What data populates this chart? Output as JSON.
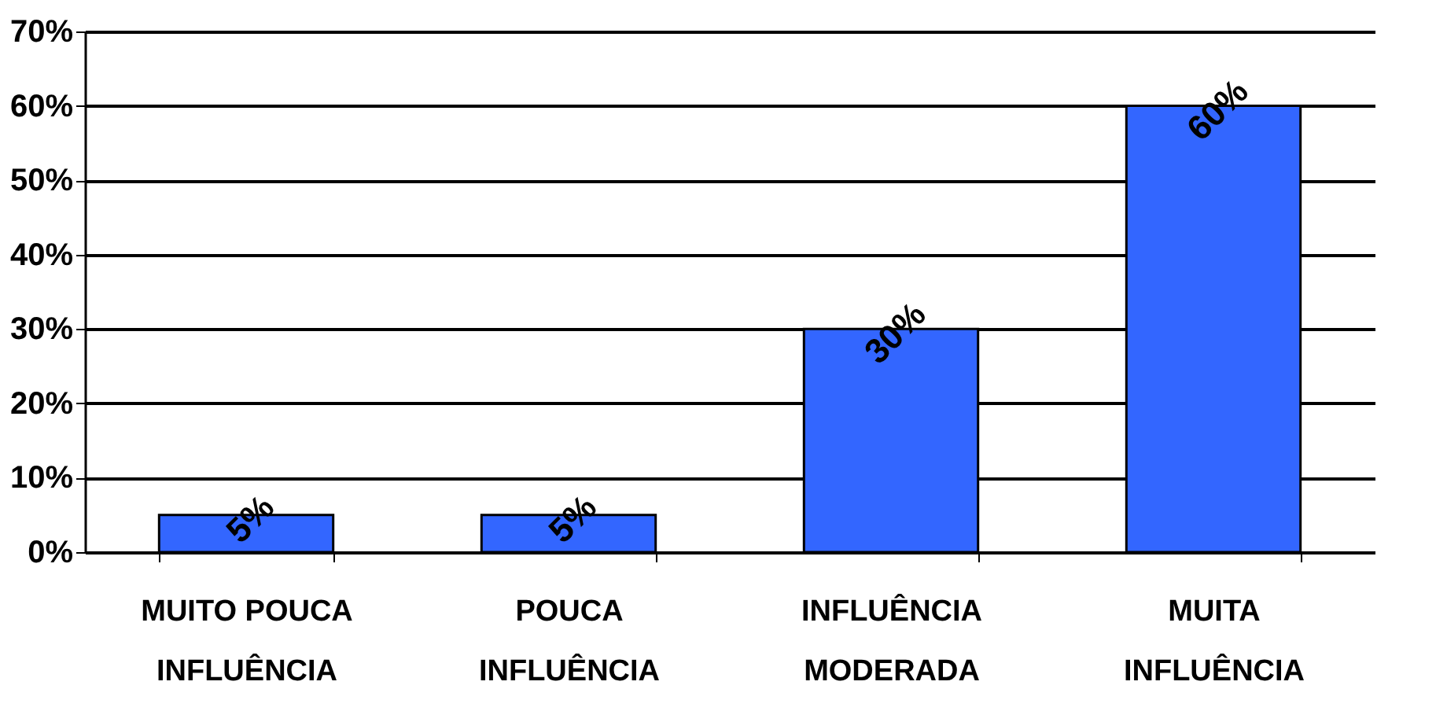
{
  "chart_data": {
    "type": "bar",
    "categories": [
      "MUITO POUCA INFLUÊNCIA",
      "POUCA INFLUÊNCIA",
      "INFLUÊNCIA MODERADA",
      "MUITA INFLUÊNCIA"
    ],
    "values": [
      5,
      5,
      30,
      60
    ],
    "value_labels": [
      "5%",
      "5%",
      "30%",
      "60%"
    ],
    "color": "#3366ff",
    "ylim": [
      0,
      70
    ],
    "yticks": [
      {
        "value": 0,
        "label": "0%"
      },
      {
        "value": 10,
        "label": "10%"
      },
      {
        "value": 20,
        "label": "20%"
      },
      {
        "value": 30,
        "label": "30%"
      },
      {
        "value": 40,
        "label": "40%"
      },
      {
        "value": 50,
        "label": "50%"
      },
      {
        "value": 60,
        "label": "60%"
      },
      {
        "value": 70,
        "label": "70%"
      }
    ],
    "grid": "y"
  }
}
